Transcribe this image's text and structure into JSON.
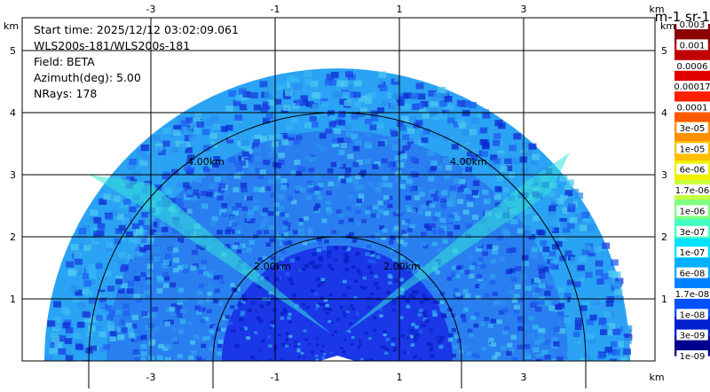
{
  "info": {
    "start_time": "Start time: 2025/12/12 03:02:09.061",
    "instrument": "WLS200s-181/WLS200s-181",
    "field": "Field: BETA",
    "azimuth": "Azimuth(deg): 5.00",
    "nrays": "NRays: 178"
  },
  "axes": {
    "unit": "km",
    "x_ticks": [
      "-3",
      "-1",
      "1",
      "3"
    ],
    "y_ticks": [
      "5",
      "4",
      "3",
      "2",
      "1"
    ],
    "x_values": [
      -3,
      -1,
      1,
      3
    ],
    "y_values": [
      5,
      4,
      3,
      2,
      1
    ]
  },
  "rings": [
    {
      "label": "2.00km",
      "range_km": 2
    },
    {
      "label": "4.00km",
      "range_km": 4
    }
  ],
  "colorbar": {
    "title": "m-1 sr-1",
    "labels": [
      "0.003",
      "0.001",
      "0.0006",
      "0.00017",
      "0.0001",
      "3e-05",
      "1e-05",
      "6e-06",
      "1.7e-06",
      "1e-06",
      "3e-07",
      "1e-07",
      "6e-08",
      "1.7e-08",
      "1e-08",
      "3e-09",
      "1e-09"
    ],
    "colors": [
      "#8b0000",
      "#c00000",
      "#e00000",
      "#ff2000",
      "#ff5a00",
      "#ff9000",
      "#ffc000",
      "#f0f000",
      "#c8ff40",
      "#80ff80",
      "#40ffc0",
      "#00e0ff",
      "#00b0ff",
      "#0080ff",
      "#0050ff",
      "#0020d0",
      "#000090"
    ]
  },
  "colors": {
    "near_field": "#1a37e8",
    "background_scan": "#2a7ff0",
    "aerosol_band": "#33e3d9",
    "outer_scan": "#2aa3f4"
  }
}
